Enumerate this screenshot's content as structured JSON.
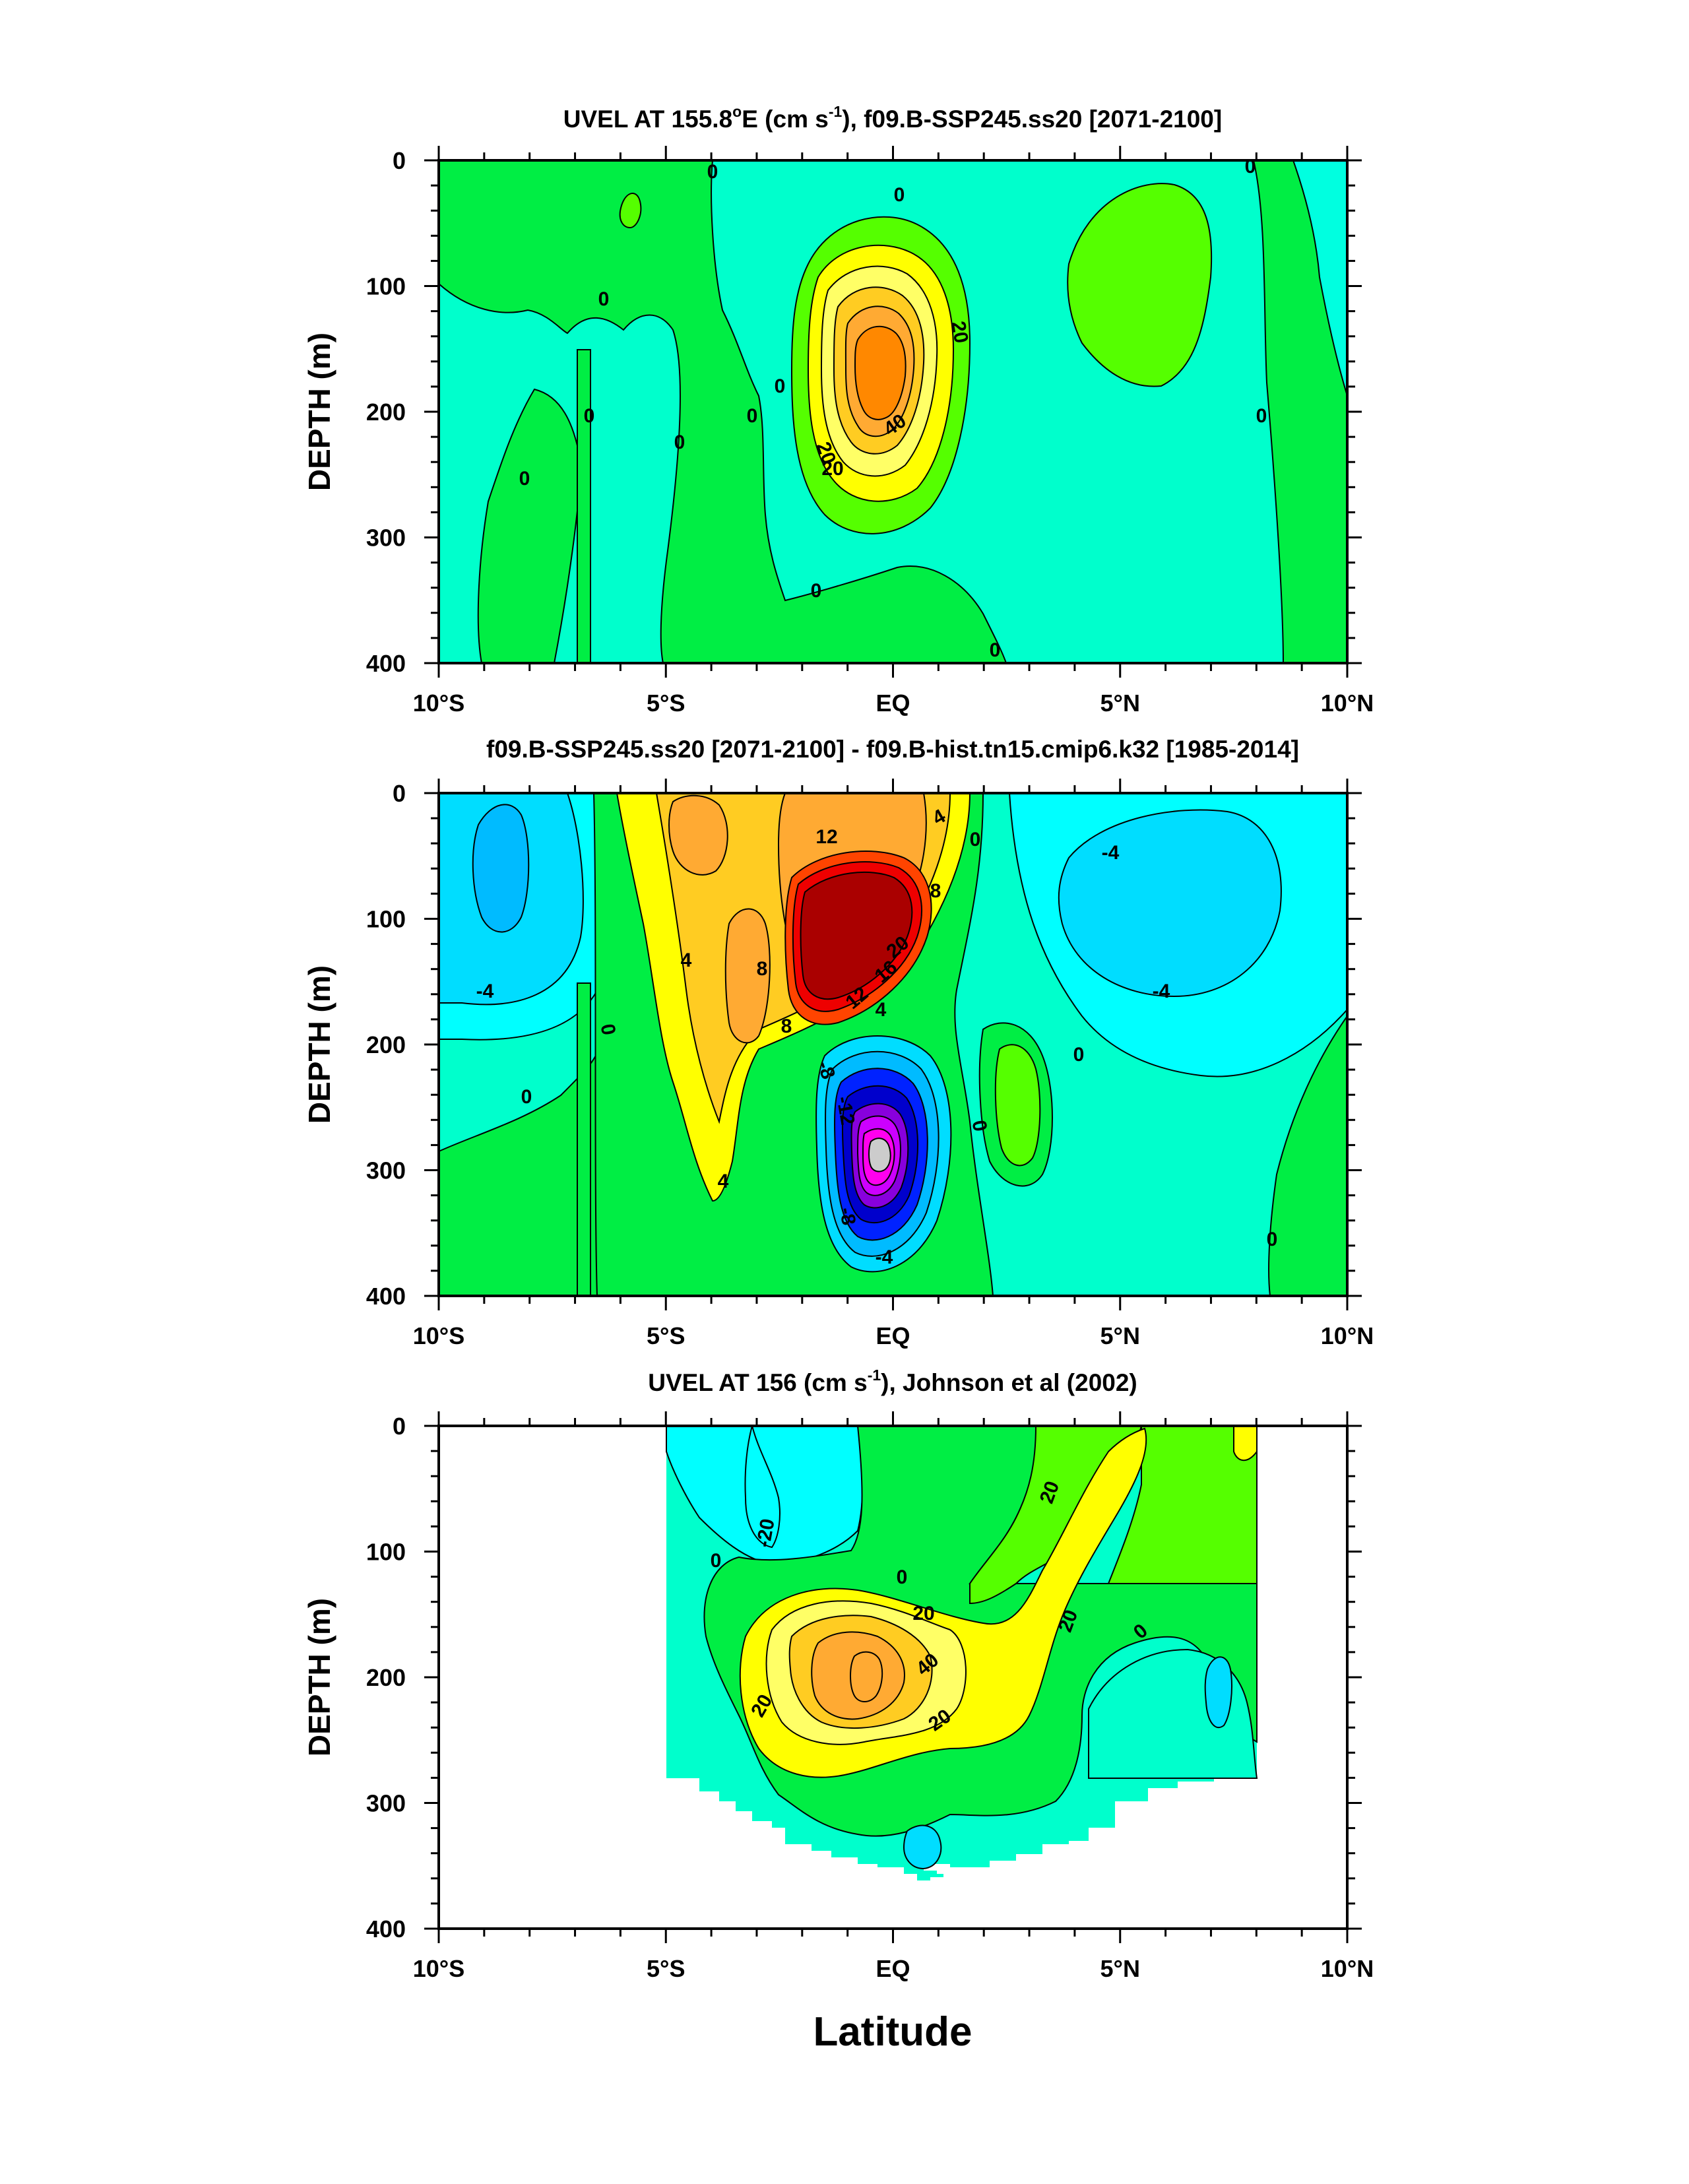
{
  "figure": {
    "xlabel": "Latitude",
    "x_tick_labels": [
      "10°S",
      "5°S",
      "EQ",
      "5°N",
      "10°N"
    ],
    "y_tick_labels": [
      "0",
      "100",
      "200",
      "300",
      "400"
    ]
  },
  "colors": {
    "cyan": "#00ffff",
    "light_cyan": "#00ffcc",
    "turquoise": "#00ffe0",
    "sky": "#00ddff",
    "light_blue": "#00bbff",
    "blue": "#0022ff",
    "dark_blue": "#0000cc",
    "violet": "#8800dd",
    "purple": "#cc00ff",
    "magenta": "#ff00ee",
    "gray": "#cccccc",
    "green": "#00ee44",
    "lime": "#55ff00",
    "light_yellow": "#ffff66",
    "yellow": "#ffff00",
    "gold": "#ffcc22",
    "light_orange": "#ffaa33",
    "orange": "#ff8800",
    "red_orange": "#ff4400",
    "red": "#ee0000",
    "dark_red": "#aa0000"
  },
  "chart_data": [
    {
      "type": "contour",
      "title": "UVEL AT 155.8°E (cm s-1), f09.B-SSP245.ss20 [2071-2100]",
      "title_parts": {
        "pre": "UVEL AT 155.8",
        "deg": "o",
        "mid": "E (cm s",
        "sup": "-1",
        "post": "), f09.B-SSP245.ss20 [2071-2100]"
      },
      "xlabel": "",
      "ylabel": "DEPTH (m)",
      "xlim": [
        -10,
        10
      ],
      "ylim": [
        400,
        0
      ],
      "x_ticks": [
        -10,
        -5,
        0,
        5,
        10
      ],
      "y_ticks": [
        0,
        100,
        200,
        300,
        400
      ],
      "contour_interval": 10,
      "max_value": 50,
      "contour_labels": [
        "0",
        "0",
        "0",
        "0",
        "0",
        "0",
        "0",
        "0",
        "0",
        "0",
        "0",
        "0",
        "20",
        "20",
        "40",
        "20"
      ]
    },
    {
      "type": "contour",
      "title": "f09.B-SSP245.ss20 [2071-2100] - f09.B-hist.tn15.cmip6.k32 [1985-2014]",
      "xlabel": "",
      "ylabel": "DEPTH (m)",
      "xlim": [
        -10,
        10
      ],
      "ylim": [
        400,
        0
      ],
      "x_ticks": [
        -10,
        -5,
        0,
        5,
        10
      ],
      "y_ticks": [
        0,
        100,
        200,
        300,
        400
      ],
      "contour_interval": 2,
      "max_value": 26,
      "min_value": -24,
      "contour_labels": [
        "12",
        "4",
        "8",
        "0",
        "-4",
        "4",
        "8",
        "8",
        "20",
        "16",
        "12",
        "4",
        "-4",
        "-4",
        "0",
        "0",
        "0",
        "-8",
        "-12",
        "0",
        "4",
        "-8",
        "-4",
        "0"
      ]
    },
    {
      "type": "contour",
      "title": "UVEL AT 156 (cm s-1), Johnson et al (2002)",
      "title_parts": {
        "pre": "UVEL AT 156 (cm s",
        "sup": "-1",
        "post": "), Johnson et al (2002)"
      },
      "xlabel": "Latitude",
      "ylabel": "DEPTH (m)",
      "xlim": [
        -10,
        10
      ],
      "ylim": [
        400,
        0
      ],
      "x_ticks": [
        -10,
        -5,
        0,
        5,
        10
      ],
      "y_ticks": [
        0,
        100,
        200,
        300,
        400
      ],
      "data_extent_lat": [
        -5,
        8
      ],
      "contour_interval": 10,
      "contour_labels": [
        "-20",
        "0",
        "20",
        "0",
        "20",
        "40",
        "20",
        "20",
        "20",
        "0"
      ]
    }
  ]
}
